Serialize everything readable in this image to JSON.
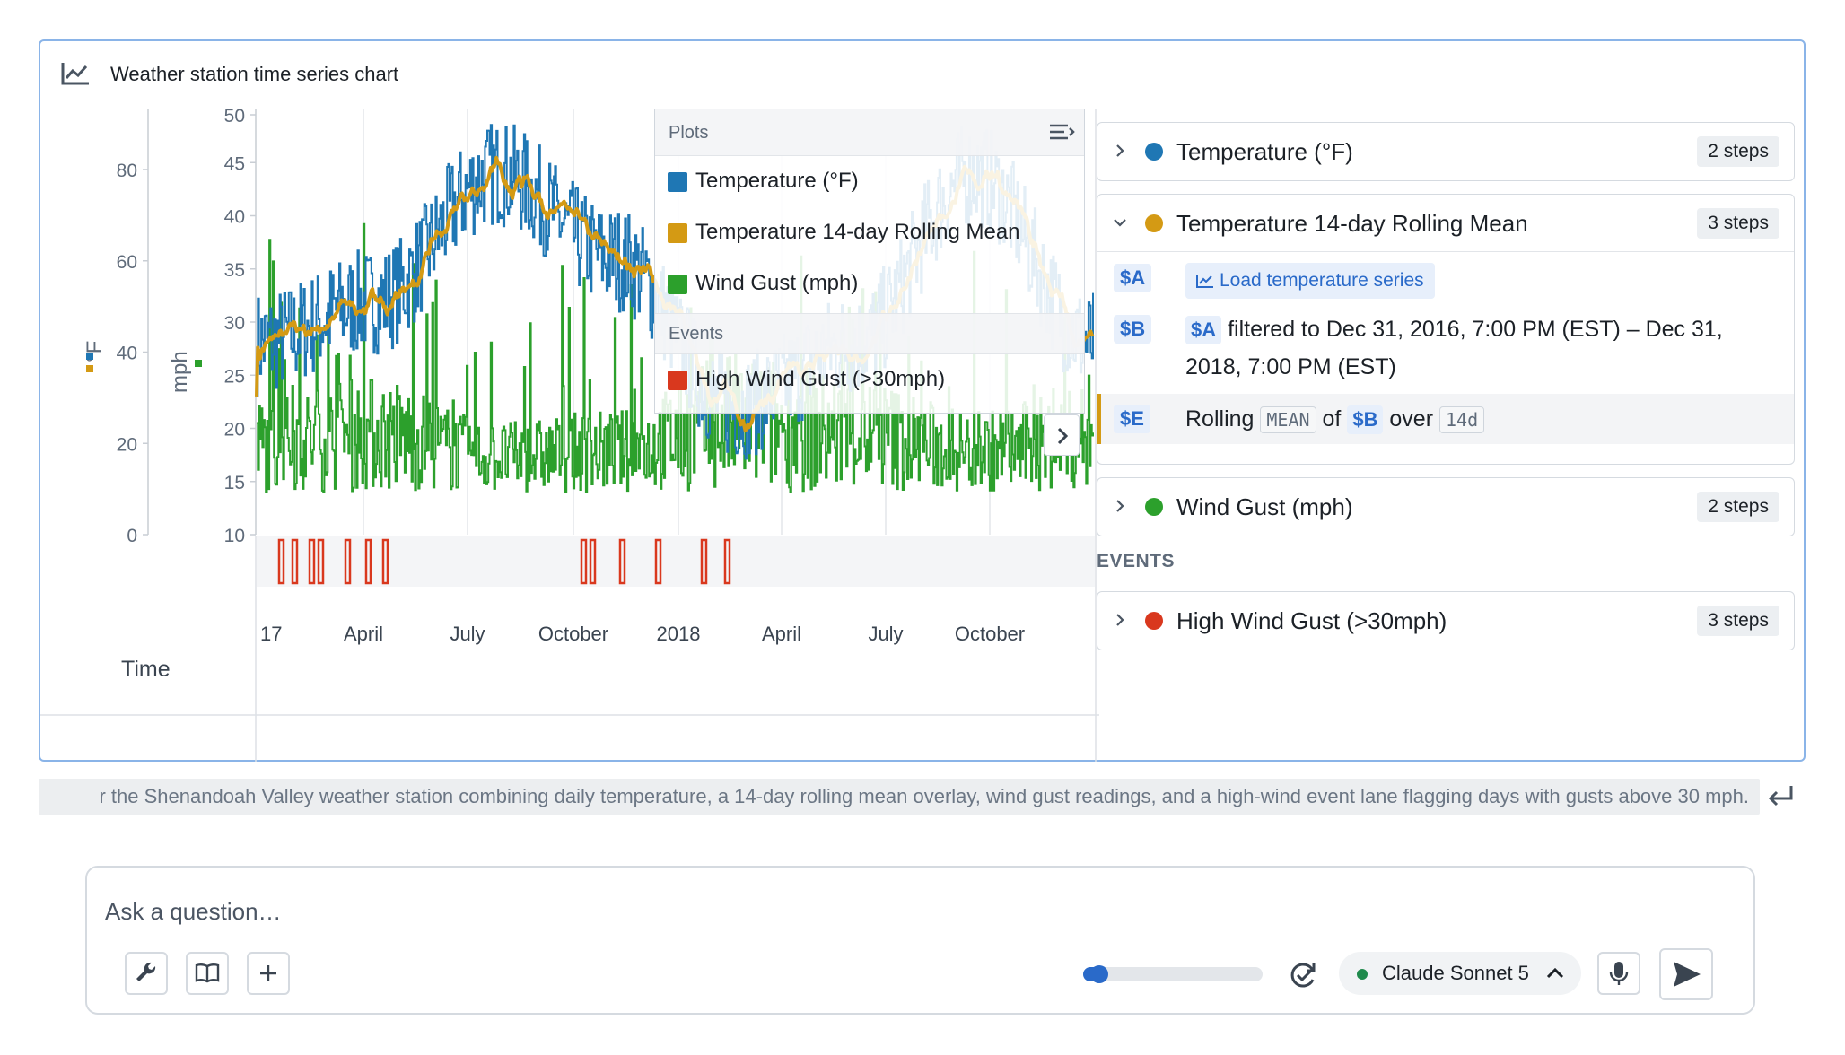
{
  "card": {
    "title": "Weather station time series chart",
    "icon": "line-chart-icon"
  },
  "chart": {
    "left_axis_label": "°F",
    "right_axis_label": "mph",
    "left_ticks": [
      "80",
      "60",
      "40",
      "20",
      "0"
    ],
    "mph_ticks": [
      "50",
      "45",
      "40",
      "35",
      "30",
      "25",
      "20",
      "15",
      "10"
    ],
    "x_ticks": [
      "17",
      "April",
      "July",
      "October",
      "2018",
      "April",
      "July",
      "October"
    ],
    "time_label": "Time"
  },
  "chart_data": {
    "type": "line",
    "x": [
      "2017-01",
      "2017-04",
      "2017-07",
      "2017-10",
      "2018-01",
      "2018-04",
      "2018-07",
      "2018-10"
    ],
    "x_tick_labels": [
      "17",
      "April",
      "July",
      "October",
      "2018",
      "April",
      "July",
      "October"
    ],
    "series": [
      {
        "name": "Temperature (°F)",
        "color": "#1f77b4",
        "values": [
          28,
          32,
          44,
          36,
          22,
          28,
          44,
          28
        ]
      },
      {
        "name": "Temperature 14-day Rolling Mean",
        "color": "#d49a14",
        "values": [
          27,
          31,
          43,
          35,
          23,
          27,
          43,
          27
        ]
      },
      {
        "name": "Wind Gust (mph)",
        "color": "#2ca02c",
        "values": [
          18,
          20,
          16,
          17,
          22,
          20,
          17,
          19
        ]
      }
    ],
    "events": [
      {
        "name": "High Wind Gust (>30mph)",
        "color": "#d9381e"
      }
    ],
    "yaxes": [
      {
        "label": "°F",
        "ticks": [
          "0",
          "20",
          "40",
          "60",
          "80"
        ]
      },
      {
        "label": "mph",
        "ticks": [
          "10",
          "15",
          "20",
          "25",
          "30",
          "35",
          "40",
          "45",
          "50"
        ]
      }
    ],
    "xlabel": "Time"
  },
  "legend": {
    "plots_label": "Plots",
    "events_label": "Events",
    "plots": [
      {
        "label": "Temperature (°F)",
        "color": "#1f77b4"
      },
      {
        "label": "Temperature 14-day Rolling Mean",
        "color": "#d49a14"
      },
      {
        "label": "Wind Gust (mph)",
        "color": "#2ca02c"
      }
    ],
    "events": [
      {
        "label": "High Wind Gust (>30mph)",
        "color": "#d9381e"
      }
    ]
  },
  "panel": {
    "groups": [
      {
        "name": "Temperature (°F)",
        "steps": "2 steps",
        "color": "#1f77b4",
        "expanded": false
      },
      {
        "name": "Temperature 14-day Rolling Mean",
        "steps": "3 steps",
        "color": "#d49a14",
        "expanded": true
      },
      {
        "name": "Wind Gust (mph)",
        "steps": "2 steps",
        "color": "#2ca02c",
        "expanded": false
      }
    ],
    "steps": {
      "a_var": "$A",
      "a_chip": "Load temperature series",
      "b_var": "$B",
      "b_ref": "$A",
      "b_text_1": "filtered to Dec 31, 2016, 7:00 PM (EST) – Dec 31,",
      "b_text_2": "2018, 7:00 PM (EST)",
      "e_var": "$E",
      "e_word_rolling": "Rolling",
      "e_fn": "MEAN",
      "e_word_of": "of",
      "e_ref": "$B",
      "e_word_over": "over",
      "e_window": "14d"
    },
    "events_header": "EVENTS",
    "event_groups": [
      {
        "name": "High Wind Gust (>30mph)",
        "steps": "3 steps",
        "color": "#d9381e"
      }
    ]
  },
  "description": "r the Shenandoah Valley weather station combining daily temperature, a 14-day rolling mean overlay, wind gust readings, and a high-wind event lane flagging days with gusts above 30 mph.",
  "ask": {
    "placeholder": "Ask a question…",
    "model": "Claude Sonnet 5",
    "progress": 0.04
  }
}
